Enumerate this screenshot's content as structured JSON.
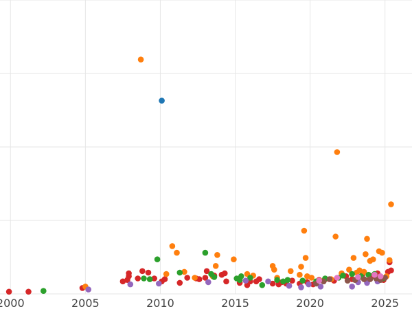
{
  "chart_data": {
    "type": "scatter",
    "title": "",
    "xlabel": "",
    "ylabel": "",
    "x_ticks": [
      "2000",
      "2005",
      "2010",
      "2015",
      "2020",
      "2025"
    ],
    "xlim": [
      1999.3,
      2026.8
    ],
    "ylim": [
      0,
      400
    ],
    "y_gridlines": [
      0,
      100,
      200,
      300,
      400
    ],
    "grid": true,
    "legend": "none",
    "series": [
      {
        "color": "#d62728",
        "points": [
          [
            1999.9,
            3
          ],
          [
            2001.2,
            3
          ],
          [
            2004.8,
            8
          ],
          [
            2007.5,
            17
          ],
          [
            2007.8,
            19
          ],
          [
            2007.9,
            28
          ],
          [
            2007.9,
            24
          ],
          [
            2008.5,
            21
          ],
          [
            2008.8,
            31
          ],
          [
            2009.2,
            29
          ],
          [
            2009.6,
            21
          ],
          [
            2010.1,
            17
          ],
          [
            2010.3,
            20
          ],
          [
            2011.3,
            15
          ],
          [
            2011.8,
            22
          ],
          [
            2012.4,
            21
          ],
          [
            2012.6,
            20
          ],
          [
            2013.0,
            22
          ],
          [
            2013.1,
            31
          ],
          [
            2013.6,
            25
          ],
          [
            2014.1,
            26
          ],
          [
            2014.3,
            28
          ],
          [
            2014.4,
            17
          ],
          [
            2015.3,
            15
          ],
          [
            2015.8,
            12
          ],
          [
            2016.0,
            17
          ],
          [
            2016.4,
            17
          ],
          [
            2016.6,
            20
          ],
          [
            2017.5,
            14
          ],
          [
            2017.9,
            13
          ],
          [
            2018.1,
            16
          ],
          [
            2018.4,
            14
          ],
          [
            2018.8,
            18
          ],
          [
            2019.3,
            14
          ],
          [
            2019.8,
            16
          ],
          [
            2020.2,
            13
          ],
          [
            2020.6,
            19
          ],
          [
            2021.0,
            20
          ],
          [
            2021.6,
            18
          ],
          [
            2022.4,
            24
          ],
          [
            2022.8,
            20
          ],
          [
            2023.2,
            21
          ],
          [
            2023.5,
            27
          ],
          [
            2023.8,
            18
          ],
          [
            2024.1,
            24
          ],
          [
            2024.5,
            28
          ],
          [
            2024.9,
            19
          ],
          [
            2025.2,
            30
          ],
          [
            2025.4,
            32
          ],
          [
            2025.3,
            43
          ]
        ]
      },
      {
        "color": "#ff7f0e",
        "points": [
          [
            2005.0,
            10
          ],
          [
            2008.7,
            319
          ],
          [
            2010.4,
            27
          ],
          [
            2010.8,
            65
          ],
          [
            2011.1,
            56
          ],
          [
            2011.6,
            30
          ],
          [
            2012.3,
            22
          ],
          [
            2013.5,
            24
          ],
          [
            2013.7,
            38
          ],
          [
            2013.8,
            53
          ],
          [
            2014.9,
            47
          ],
          [
            2015.8,
            27
          ],
          [
            2016.2,
            25
          ],
          [
            2017.5,
            38
          ],
          [
            2017.6,
            33
          ],
          [
            2017.8,
            22
          ],
          [
            2018.7,
            31
          ],
          [
            2019.3,
            26
          ],
          [
            2019.4,
            37
          ],
          [
            2019.6,
            86
          ],
          [
            2019.7,
            49
          ],
          [
            2019.8,
            24
          ],
          [
            2020.1,
            22
          ],
          [
            2020.9,
            18
          ],
          [
            2021.4,
            20
          ],
          [
            2021.7,
            78
          ],
          [
            2021.8,
            193
          ],
          [
            2022.1,
            28
          ],
          [
            2022.6,
            33
          ],
          [
            2022.9,
            49
          ],
          [
            2023.1,
            29
          ],
          [
            2023.3,
            32
          ],
          [
            2023.6,
            30
          ],
          [
            2023.7,
            54
          ],
          [
            2023.8,
            75
          ],
          [
            2024.0,
            45
          ],
          [
            2024.2,
            47
          ],
          [
            2024.6,
            58
          ],
          [
            2024.8,
            56
          ],
          [
            2025.3,
            46
          ],
          [
            2025.4,
            122
          ],
          [
            2025.1,
            24
          ]
        ]
      },
      {
        "color": "#2ca02c",
        "points": [
          [
            2002.2,
            4
          ],
          [
            2008.9,
            21
          ],
          [
            2009.3,
            20
          ],
          [
            2009.8,
            47
          ],
          [
            2011.3,
            29
          ],
          [
            2013.0,
            56
          ],
          [
            2013.4,
            27
          ],
          [
            2013.6,
            23
          ],
          [
            2015.1,
            21
          ],
          [
            2015.3,
            19
          ],
          [
            2015.4,
            24
          ],
          [
            2016.0,
            22
          ],
          [
            2016.8,
            12
          ],
          [
            2017.8,
            19
          ],
          [
            2018.2,
            17
          ],
          [
            2018.5,
            19
          ],
          [
            2019.5,
            18
          ],
          [
            2020.4,
            17
          ],
          [
            2021.0,
            21
          ],
          [
            2021.9,
            22
          ],
          [
            2022.2,
            25
          ],
          [
            2022.8,
            27
          ],
          [
            2023.4,
            24
          ],
          [
            2023.9,
            26
          ],
          [
            2024.3,
            27
          ],
          [
            2024.9,
            21
          ]
        ]
      },
      {
        "color": "#9467bd",
        "points": [
          [
            2005.2,
            6
          ],
          [
            2008.0,
            13
          ],
          [
            2009.9,
            14
          ],
          [
            2013.2,
            16
          ],
          [
            2015.7,
            18
          ],
          [
            2017.2,
            17
          ],
          [
            2018.6,
            11
          ],
          [
            2019.4,
            9
          ],
          [
            2019.9,
            13
          ],
          [
            2020.7,
            10
          ],
          [
            2022.8,
            10
          ],
          [
            2023.2,
            16
          ],
          [
            2023.8,
            15
          ],
          [
            2024.5,
            17
          ]
        ]
      },
      {
        "color": "#8c564b",
        "points": [
          [
            2020.4,
            14
          ],
          [
            2020.9,
            17
          ],
          [
            2021.3,
            20
          ],
          [
            2022.5,
            18
          ],
          [
            2023.0,
            19
          ],
          [
            2023.6,
            20
          ],
          [
            2024.0,
            20
          ],
          [
            2024.4,
            21
          ],
          [
            2024.7,
            19
          ],
          [
            2025.0,
            22
          ]
        ]
      },
      {
        "color": "#e377c2",
        "points": [
          [
            2020.6,
            18
          ],
          [
            2021.8,
            22
          ],
          [
            2023.2,
            23
          ],
          [
            2024.3,
            26
          ],
          [
            2024.7,
            24
          ]
        ]
      },
      {
        "color": "#1f77b4",
        "points": [
          [
            2010.1,
            263
          ]
        ]
      }
    ]
  }
}
